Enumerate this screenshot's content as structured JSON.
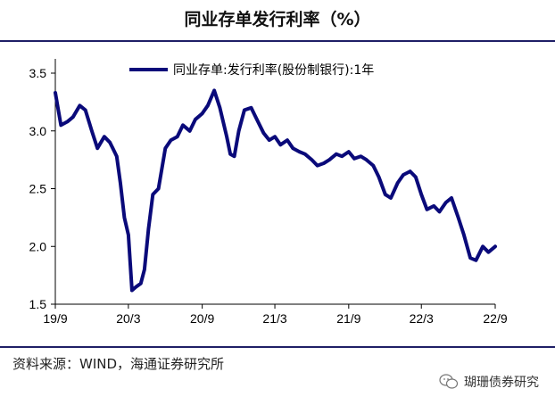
{
  "title": "同业存单发行利率（%）",
  "source_note": "资料来源：WIND，海通证券研究所",
  "watermark": "瑚珊债券研究",
  "icons": {
    "watermark": "wechat-icon"
  },
  "colors": {
    "series": "#0a0a7a",
    "rule": "#1f1f66"
  },
  "chart_data": {
    "type": "line",
    "title": "同业存单发行利率（%）",
    "xlabel": "",
    "ylabel": "",
    "ylim": [
      1.5,
      3.5
    ],
    "yticks": [
      1.5,
      2.0,
      2.5,
      3.0,
      3.5
    ],
    "ytick_labels": [
      "1.5",
      "2.0",
      "2.5",
      "3.0",
      "3.5"
    ],
    "xlim": [
      "2019-09",
      "2022-09"
    ],
    "xticks": [
      "2019-09",
      "2020-03",
      "2020-09",
      "2021-03",
      "2021-09",
      "2022-03",
      "2022-09"
    ],
    "xtick_labels": [
      "19/9",
      "20/3",
      "20/9",
      "21/3",
      "21/9",
      "22/3",
      "22/9"
    ],
    "grid": false,
    "legend_position": "top",
    "series": [
      {
        "name": "同业存单:发行利率(股份制银行):1年",
        "x": [
          "2019-09",
          "2019-09-15",
          "2019-10",
          "2019-10-15",
          "2019-11",
          "2019-11-15",
          "2019-12",
          "2019-12-15",
          "2020-01",
          "2020-01-15",
          "2020-02",
          "2020-02-10",
          "2020-02-20",
          "2020-03",
          "2020-03-10",
          "2020-03-20",
          "2020-04",
          "2020-04-10",
          "2020-04-20",
          "2020-05",
          "2020-05-15",
          "2020-06",
          "2020-06-15",
          "2020-07",
          "2020-07-15",
          "2020-08",
          "2020-08-15",
          "2020-09",
          "2020-09-15",
          "2020-10",
          "2020-10-15",
          "2020-11",
          "2020-11-10",
          "2020-11-20",
          "2020-12",
          "2020-12-15",
          "2021-01",
          "2021-01-15",
          "2021-02",
          "2021-02-15",
          "2021-03",
          "2021-03-15",
          "2021-04",
          "2021-04-15",
          "2021-05",
          "2021-05-15",
          "2021-06",
          "2021-06-15",
          "2021-07",
          "2021-07-15",
          "2021-08",
          "2021-08-15",
          "2021-09",
          "2021-09-15",
          "2021-10",
          "2021-10-15",
          "2021-11",
          "2021-11-15",
          "2021-12",
          "2021-12-15",
          "2022-01",
          "2022-01-15",
          "2022-02",
          "2022-02-15",
          "2022-03",
          "2022-03-15",
          "2022-04",
          "2022-04-15",
          "2022-05",
          "2022-05-15",
          "2022-06",
          "2022-06-15",
          "2022-07",
          "2022-07-15",
          "2022-08",
          "2022-08-15",
          "2022-09"
        ],
        "values": [
          3.33,
          3.05,
          3.08,
          3.12,
          3.22,
          3.18,
          3.0,
          2.85,
          2.95,
          2.9,
          2.78,
          2.55,
          2.25,
          2.1,
          1.62,
          1.65,
          1.68,
          1.8,
          2.15,
          2.45,
          2.5,
          2.85,
          2.92,
          2.95,
          3.05,
          3.0,
          3.1,
          3.15,
          3.22,
          3.35,
          3.2,
          2.95,
          2.8,
          2.78,
          3.0,
          3.18,
          3.2,
          3.1,
          2.98,
          2.92,
          2.95,
          2.88,
          2.92,
          2.85,
          2.82,
          2.8,
          2.75,
          2.7,
          2.72,
          2.75,
          2.8,
          2.78,
          2.82,
          2.76,
          2.78,
          2.75,
          2.7,
          2.6,
          2.45,
          2.42,
          2.55,
          2.62,
          2.65,
          2.6,
          2.45,
          2.32,
          2.35,
          2.3,
          2.38,
          2.42,
          2.25,
          2.1,
          1.9,
          1.88,
          2.0,
          1.95,
          2.0
        ]
      }
    ]
  }
}
